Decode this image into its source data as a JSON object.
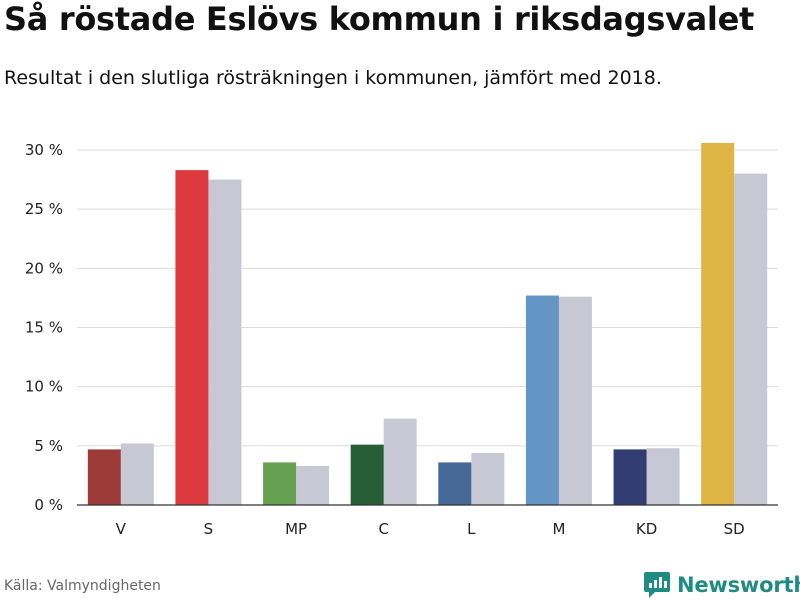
{
  "header": {
    "title": "Så röstade Eslövs kommun i riksdagsvalet",
    "subtitle": "Resultat i den slutliga rösträkningen i kommunen, jämfört med 2018."
  },
  "footer": {
    "source": "Källa: Valmyndigheten",
    "brand": "Newsworthy",
    "brand_color": "#1f8c83"
  },
  "chart_data": {
    "type": "bar",
    "title": "Så röstade Eslövs kommun i riksdagsvalet",
    "subtitle": "Resultat i den slutliga rösträkningen i kommunen, jämfört med 2018.",
    "xlabel": "",
    "ylabel": "",
    "ylim": [
      0,
      30
    ],
    "yticks": [
      0,
      5,
      10,
      15,
      20,
      25,
      30
    ],
    "ytick_labels": [
      "0 %",
      "5 %",
      "10 %",
      "15 %",
      "20 %",
      "25 %",
      "30 %"
    ],
    "grid": true,
    "categories": [
      "V",
      "S",
      "MP",
      "C",
      "L",
      "M",
      "KD",
      "SD"
    ],
    "series": [
      {
        "values": [
          4.7,
          28.3,
          3.6,
          5.1,
          3.6,
          17.7,
          4.7,
          30.6
        ],
        "colors": [
          "#9b3a36",
          "#dc3a3f",
          "#66a152",
          "#265e36",
          "#456896",
          "#6395c5",
          "#313d72",
          "#deb445"
        ]
      },
      {
        "values": [
          5.2,
          27.5,
          3.3,
          7.3,
          4.4,
          17.6,
          4.8,
          28.0
        ],
        "color": "#c8c8d4"
      }
    ]
  }
}
